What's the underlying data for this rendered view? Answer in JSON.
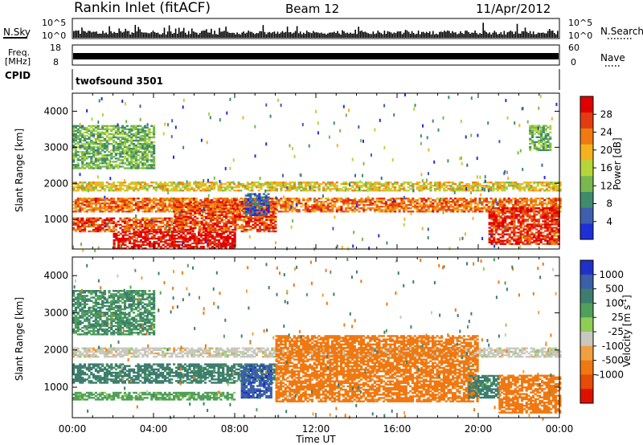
{
  "header": {
    "title": "Rankin Inlet (fitACF)",
    "beam": "Beam 12",
    "date": "11/Apr/2012"
  },
  "nsky_panel": {
    "left_label": "N.Sky",
    "right_label": "N.Search",
    "left_ticks": [
      "10^5",
      "10^0"
    ],
    "right_ticks": [
      "10^5",
      "10^0"
    ]
  },
  "freq_panel": {
    "left_label_1": "Freq.",
    "left_label_2": "[MHz]",
    "right_label": "Nave",
    "left_ticks": [
      "18",
      "8"
    ],
    "right_ticks": [
      "60",
      "0"
    ]
  },
  "cpid_panel": {
    "label": "CPID",
    "value": "twofsound 3501"
  },
  "time_axis": {
    "label": "Time UT",
    "ticks": [
      "00:00",
      "04:00",
      "08:00",
      "12:00",
      "16:00",
      "20:00",
      "00:00"
    ]
  },
  "colors": {
    "power": [
      "#1f2fd8",
      "#3f5fae",
      "#3e8c6e",
      "#78b84e",
      "#b4d63a",
      "#f3b21e",
      "#f07a10",
      "#e43c10",
      "#e00000"
    ],
    "velocity": [
      "#2031c8",
      "#3b5fa8",
      "#3c7d6e",
      "#4fa05a",
      "#8fcd55",
      "#c8c8c0",
      "#f0a040",
      "#f07810",
      "#e84a08",
      "#e01000"
    ]
  },
  "chart_data": [
    {
      "type": "heatmap",
      "panel": "power",
      "ylabel": "Slant Range [km]",
      "xlabel": "Time UT",
      "xlim": [
        "00:00",
        "24:00"
      ],
      "ylim": [
        180,
        4500
      ],
      "yticks": [
        1000,
        2000,
        3000,
        4000
      ],
      "colorbar": {
        "label": "Power [dB]",
        "range": [
          0,
          32
        ],
        "ticks": [
          4,
          8,
          12,
          16,
          20,
          24,
          28
        ]
      },
      "echo_regions": [
        {
          "t_start": 0.0,
          "t_end": 24.0,
          "range_start": 1780,
          "range_end": 2050,
          "typical_power_db": 18
        },
        {
          "t_start": 0.0,
          "t_end": 24.0,
          "range_start": 1200,
          "range_end": 1600,
          "typical_power_db": 24
        },
        {
          "t_start": 0.0,
          "t_end": 5.5,
          "range_start": 650,
          "range_end": 1050,
          "typical_power_db": 26
        },
        {
          "t_start": 2.0,
          "t_end": 8.0,
          "range_start": 180,
          "range_end": 650,
          "typical_power_db": 30
        },
        {
          "t_start": 5.0,
          "t_end": 10.0,
          "range_start": 650,
          "range_end": 1500,
          "typical_power_db": 26
        },
        {
          "t_start": 8.5,
          "t_end": 9.7,
          "range_start": 1100,
          "range_end": 1700,
          "typical_power_db": 5
        },
        {
          "t_start": 20.5,
          "t_end": 24.0,
          "range_start": 300,
          "range_end": 1300,
          "typical_power_db": 28
        },
        {
          "t_start": 0.0,
          "t_end": 4.0,
          "range_start": 2400,
          "range_end": 3600,
          "typical_power_db": 12
        },
        {
          "t_start": 22.5,
          "t_end": 23.5,
          "range_start": 2900,
          "range_end": 3600,
          "typical_power_db": 12
        }
      ]
    },
    {
      "type": "heatmap",
      "panel": "velocity",
      "ylabel": "Slant Range [km]",
      "xlabel": "Time UT",
      "xlim": [
        "00:00",
        "24:00"
      ],
      "ylim": [
        180,
        4500
      ],
      "yticks": [
        1000,
        2000,
        3000,
        4000
      ],
      "colorbar": {
        "label": "Velocity [m s^-1]",
        "ticks": [
          "1000",
          "500",
          "100",
          "25",
          "-25",
          "-100",
          "-500",
          "-1000"
        ]
      },
      "echo_regions": [
        {
          "t_start": 0.0,
          "t_end": 24.0,
          "range_start": 1800,
          "range_end": 2050,
          "typical_velocity": 0
        },
        {
          "t_start": 0.0,
          "t_end": 10.0,
          "range_start": 1100,
          "range_end": 1600,
          "typical_velocity": 150
        },
        {
          "t_start": 0.0,
          "t_end": 8.0,
          "range_start": 650,
          "range_end": 850,
          "typical_velocity": 60
        },
        {
          "t_start": 8.3,
          "t_end": 9.8,
          "range_start": 700,
          "range_end": 1600,
          "typical_velocity": 800
        },
        {
          "t_start": 10.0,
          "t_end": 20.0,
          "range_start": 600,
          "range_end": 2400,
          "typical_velocity": -300
        },
        {
          "t_start": 19.5,
          "t_end": 21.0,
          "range_start": 700,
          "range_end": 1300,
          "typical_velocity": 150
        },
        {
          "t_start": 21.0,
          "t_end": 24.0,
          "range_start": 300,
          "range_end": 1300,
          "typical_velocity": -300
        },
        {
          "t_start": 0.0,
          "t_end": 4.0,
          "range_start": 2400,
          "range_end": 3600,
          "typical_velocity": 100
        }
      ]
    }
  ]
}
